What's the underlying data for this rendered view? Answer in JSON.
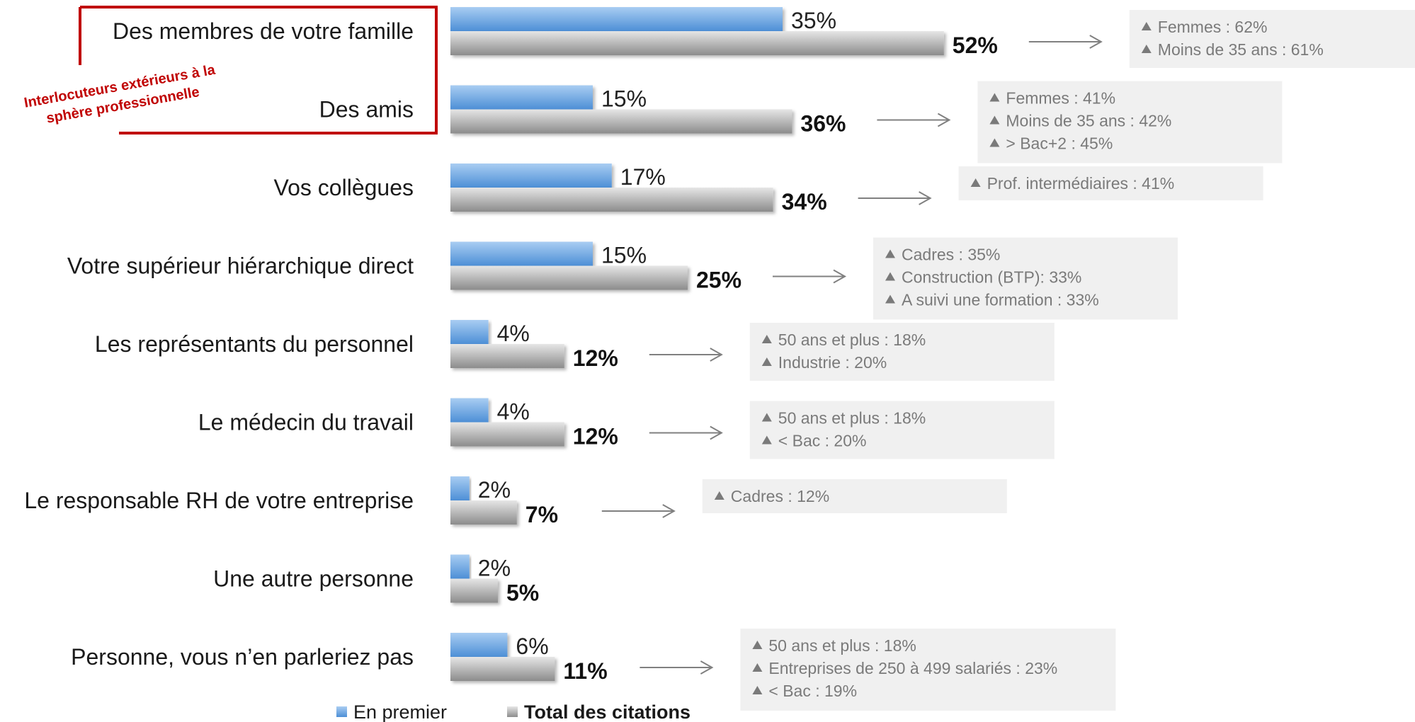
{
  "chart_data": {
    "type": "bar",
    "orientation": "horizontal",
    "categories": [
      "Des membres de votre famille",
      "Des amis",
      "Vos collègues",
      "Votre supérieur hiérarchique direct",
      "Les représentants du personnel",
      "Le médecin du travail",
      "Le responsable RH de votre entreprise",
      "Une autre personne",
      "Personne, vous n’en parleriez pas"
    ],
    "series": [
      {
        "name": "En premier",
        "values": [
          35,
          15,
          17,
          15,
          4,
          4,
          2,
          2,
          6
        ],
        "labels": [
          "35%",
          "15%",
          "17%",
          "15%",
          "4%",
          "4%",
          "2%",
          "2%",
          "6%"
        ],
        "color": "#6aa3dd"
      },
      {
        "name": "Total des citations",
        "values": [
          52,
          36,
          34,
          25,
          12,
          12,
          7,
          5,
          11
        ],
        "labels": [
          "52%",
          "36%",
          "34%",
          "25%",
          "12%",
          "12%",
          "7%",
          "5%",
          "11%"
        ],
        "color": "#a6a6a6"
      }
    ],
    "unit": "%",
    "legend_position": "bottom",
    "notes": [
      [
        "Femmes : 62%",
        "Moins de 35 ans : 61%"
      ],
      [
        "Femmes : 41%",
        "Moins de 35 ans : 42%",
        "> Bac+2 : 45%"
      ],
      [
        "Prof. intermédiaires : 41%"
      ],
      [
        "Cadres : 35%",
        "Construction (BTP): 33%",
        "A suivi une formation : 33%"
      ],
      [
        "50 ans et plus : 18%",
        "Industrie : 20%"
      ],
      [
        "50 ans et plus : 18%",
        "< Bac : 20%"
      ],
      [
        "Cadres : 12%"
      ],
      [],
      [
        "50 ans et plus : 18%",
        "Entreprises de 250 à 499 salariés : 23%",
        "< Bac : 19%"
      ]
    ],
    "callout": {
      "text_lines": [
        "Interlocuteurs extérieurs  à la",
        "sphère professionnelle"
      ],
      "color": "#c00000",
      "applies_to": [
        "Des membres de votre famille",
        "Des amis"
      ]
    }
  }
}
